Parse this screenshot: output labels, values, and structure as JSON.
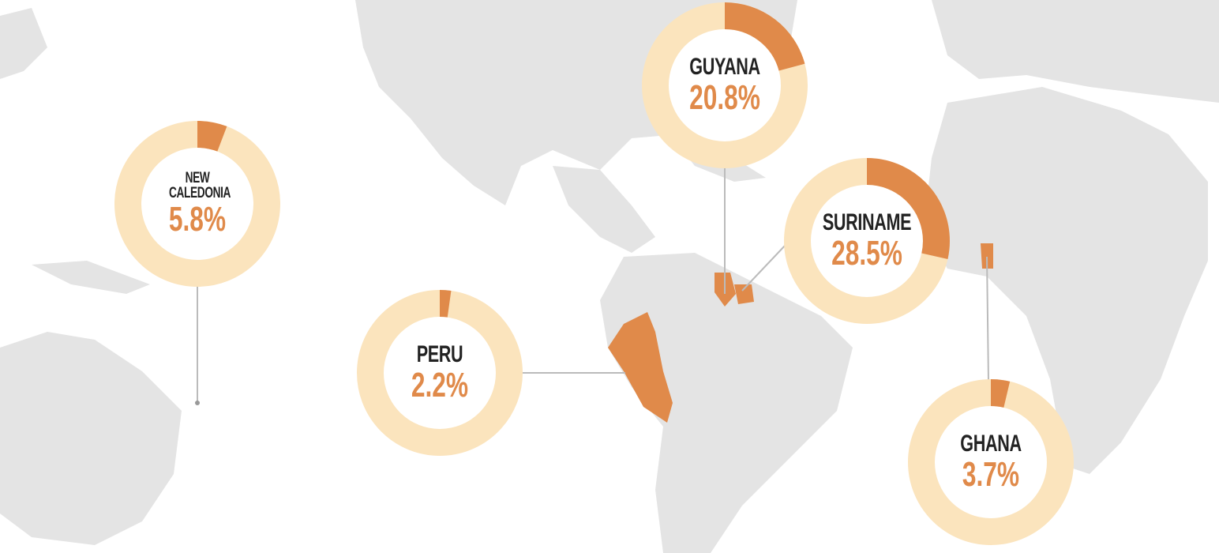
{
  "chart_data": [
    {
      "type": "pie",
      "title": "NEW CALEDONIA",
      "values": [
        5.8
      ],
      "value_labels": [
        "5.8%"
      ],
      "color": "#e08a4a",
      "track_color": "#fbe4bd"
    },
    {
      "type": "pie",
      "title": "GUYANA",
      "values": [
        20.8
      ],
      "value_labels": [
        "20.8%"
      ],
      "color": "#e08a4a",
      "track_color": "#fbe4bd"
    },
    {
      "type": "pie",
      "title": "SURINAME",
      "values": [
        28.5
      ],
      "value_labels": [
        "28.5%"
      ],
      "color": "#e08a4a",
      "track_color": "#fbe4bd"
    },
    {
      "type": "pie",
      "title": "PERU",
      "values": [
        2.2
      ],
      "value_labels": [
        "2.2%"
      ],
      "color": "#e08a4a",
      "track_color": "#fbe4bd"
    },
    {
      "type": "pie",
      "title": "GHANA",
      "values": [
        3.7
      ],
      "value_labels": [
        "3.7%"
      ],
      "color": "#e08a4a",
      "track_color": "#fbe4bd"
    }
  ]
}
